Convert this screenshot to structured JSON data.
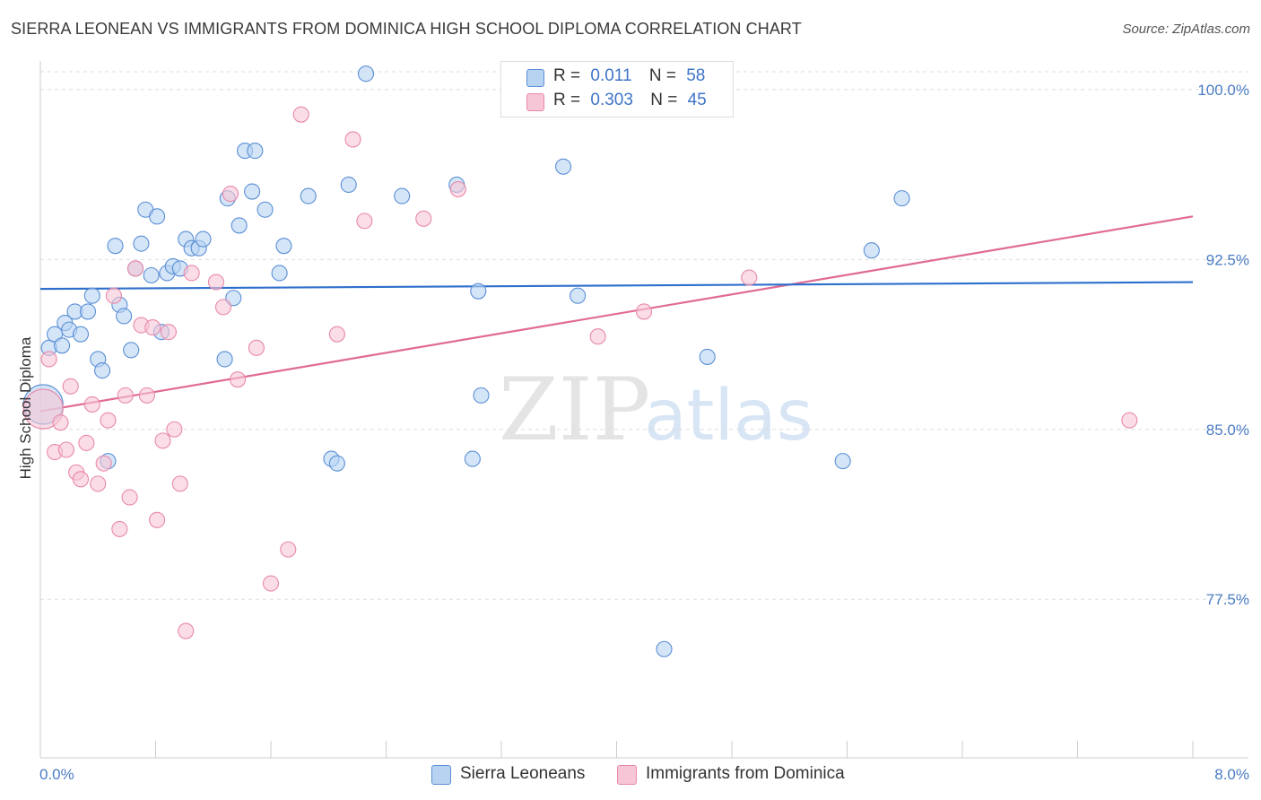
{
  "header": {
    "title": "SIERRA LEONEAN VS IMMIGRANTS FROM DOMINICA HIGH SCHOOL DIPLOMA CORRELATION CHART",
    "source": "Source: ZipAtlas.com"
  },
  "legend": {
    "series1": {
      "r_label": "R =",
      "r_value": "0.011",
      "n_label": "N =",
      "n_value": "58"
    },
    "series2": {
      "r_label": "R =",
      "r_value": "0.303",
      "n_label": "N =",
      "n_value": "45"
    }
  },
  "bottom_legend": {
    "series1": "Sierra Leoneans",
    "series2": "Immigrants from Dominica"
  },
  "colors": {
    "series1_fill": "#b8d3f2",
    "series1_stroke": "#5b8fd6",
    "series1_line": "#2e6fcc",
    "series2_fill": "#f7c6d6",
    "series2_stroke": "#e889aa",
    "series2_line": "#e06a95",
    "tick_text": "#4a7cc4",
    "grid": "#dddddd"
  },
  "chart_data": {
    "type": "scatter",
    "title": "SIERRA LEONEAN VS IMMIGRANTS FROM DOMINICA HIGH SCHOOL DIPLOMA CORRELATION CHART",
    "xlabel": "",
    "ylabel": "High School Diploma",
    "xlim": [
      0,
      8
    ],
    "ylim": [
      70.5,
      101.5
    ],
    "x_tick_labels": [
      "0.0%",
      "8.0%"
    ],
    "y_ticks": [
      77.5,
      85.0,
      92.5,
      100.0
    ],
    "y_tick_labels": [
      "77.5%",
      "85.0%",
      "92.5%",
      "100.0%"
    ],
    "grid": true,
    "watermark": {
      "zip": "ZIP",
      "atlas": "atlas"
    },
    "series": [
      {
        "name": "Sierra Leoneans",
        "trend": {
          "x": [
            0,
            8
          ],
          "y": [
            91.2,
            91.5
          ]
        },
        "points": [
          {
            "x": 0.02,
            "y": 86.1,
            "big": true
          },
          {
            "x": 0.06,
            "y": 88.6
          },
          {
            "x": 0.1,
            "y": 89.2
          },
          {
            "x": 0.15,
            "y": 88.7
          },
          {
            "x": 0.17,
            "y": 89.7
          },
          {
            "x": 0.2,
            "y": 89.4
          },
          {
            "x": 0.24,
            "y": 90.2
          },
          {
            "x": 0.28,
            "y": 89.2
          },
          {
            "x": 0.33,
            "y": 90.2
          },
          {
            "x": 0.36,
            "y": 90.9
          },
          {
            "x": 0.4,
            "y": 88.1
          },
          {
            "x": 0.43,
            "y": 87.6
          },
          {
            "x": 0.47,
            "y": 83.6
          },
          {
            "x": 0.52,
            "y": 93.1
          },
          {
            "x": 0.55,
            "y": 90.5
          },
          {
            "x": 0.58,
            "y": 90.0
          },
          {
            "x": 0.63,
            "y": 88.5
          },
          {
            "x": 0.66,
            "y": 92.1
          },
          {
            "x": 0.7,
            "y": 93.2
          },
          {
            "x": 0.73,
            "y": 94.7
          },
          {
            "x": 0.77,
            "y": 91.8
          },
          {
            "x": 0.81,
            "y": 94.4
          },
          {
            "x": 0.84,
            "y": 89.3
          },
          {
            "x": 0.88,
            "y": 91.9
          },
          {
            "x": 0.92,
            "y": 92.2
          },
          {
            "x": 0.97,
            "y": 92.1
          },
          {
            "x": 1.01,
            "y": 93.4
          },
          {
            "x": 1.05,
            "y": 93.0
          },
          {
            "x": 1.1,
            "y": 93.0
          },
          {
            "x": 1.13,
            "y": 93.4
          },
          {
            "x": 1.28,
            "y": 88.1
          },
          {
            "x": 1.3,
            "y": 95.2
          },
          {
            "x": 1.34,
            "y": 90.8
          },
          {
            "x": 1.38,
            "y": 94.0
          },
          {
            "x": 1.42,
            "y": 97.3
          },
          {
            "x": 1.47,
            "y": 95.5
          },
          {
            "x": 1.49,
            "y": 97.3
          },
          {
            "x": 1.56,
            "y": 94.7
          },
          {
            "x": 1.66,
            "y": 91.9
          },
          {
            "x": 1.69,
            "y": 93.1
          },
          {
            "x": 1.86,
            "y": 95.3
          },
          {
            "x": 2.02,
            "y": 83.7
          },
          {
            "x": 2.06,
            "y": 83.5
          },
          {
            "x": 2.14,
            "y": 95.8
          },
          {
            "x": 2.26,
            "y": 100.7
          },
          {
            "x": 2.51,
            "y": 95.3
          },
          {
            "x": 2.89,
            "y": 95.8
          },
          {
            "x": 3.0,
            "y": 83.7
          },
          {
            "x": 3.04,
            "y": 91.1
          },
          {
            "x": 3.06,
            "y": 86.5
          },
          {
            "x": 3.63,
            "y": 96.6
          },
          {
            "x": 3.73,
            "y": 90.9
          },
          {
            "x": 4.31,
            "y": 100.7
          },
          {
            "x": 4.33,
            "y": 75.3
          },
          {
            "x": 4.63,
            "y": 88.2
          },
          {
            "x": 5.57,
            "y": 83.6
          },
          {
            "x": 5.77,
            "y": 92.9
          },
          {
            "x": 5.98,
            "y": 95.2
          }
        ]
      },
      {
        "name": "Immigrants from Dominica",
        "trend": {
          "x": [
            0,
            8
          ],
          "y": [
            85.8,
            94.4
          ]
        },
        "points": [
          {
            "x": 0.02,
            "y": 85.9,
            "big": true
          },
          {
            "x": 0.06,
            "y": 88.1
          },
          {
            "x": 0.1,
            "y": 84.0
          },
          {
            "x": 0.14,
            "y": 85.3
          },
          {
            "x": 0.18,
            "y": 84.1
          },
          {
            "x": 0.21,
            "y": 86.9
          },
          {
            "x": 0.25,
            "y": 83.1
          },
          {
            "x": 0.28,
            "y": 82.8
          },
          {
            "x": 0.32,
            "y": 84.4
          },
          {
            "x": 0.36,
            "y": 86.1
          },
          {
            "x": 0.4,
            "y": 82.6
          },
          {
            "x": 0.44,
            "y": 83.5
          },
          {
            "x": 0.47,
            "y": 85.4
          },
          {
            "x": 0.51,
            "y": 90.9
          },
          {
            "x": 0.55,
            "y": 80.6
          },
          {
            "x": 0.59,
            "y": 86.5
          },
          {
            "x": 0.62,
            "y": 82.0
          },
          {
            "x": 0.66,
            "y": 92.1
          },
          {
            "x": 0.7,
            "y": 89.6
          },
          {
            "x": 0.74,
            "y": 86.5
          },
          {
            "x": 0.78,
            "y": 89.5
          },
          {
            "x": 0.81,
            "y": 81.0
          },
          {
            "x": 0.85,
            "y": 84.5
          },
          {
            "x": 0.89,
            "y": 89.3
          },
          {
            "x": 0.93,
            "y": 85.0
          },
          {
            "x": 0.97,
            "y": 82.6
          },
          {
            "x": 1.01,
            "y": 76.1
          },
          {
            "x": 1.05,
            "y": 91.9
          },
          {
            "x": 1.22,
            "y": 91.5
          },
          {
            "x": 1.27,
            "y": 90.4
          },
          {
            "x": 1.32,
            "y": 95.4
          },
          {
            "x": 1.37,
            "y": 87.2
          },
          {
            "x": 1.5,
            "y": 88.6
          },
          {
            "x": 1.6,
            "y": 78.2
          },
          {
            "x": 1.72,
            "y": 79.7
          },
          {
            "x": 1.81,
            "y": 98.9
          },
          {
            "x": 2.06,
            "y": 89.2
          },
          {
            "x": 2.17,
            "y": 97.8
          },
          {
            "x": 2.25,
            "y": 94.2
          },
          {
            "x": 2.66,
            "y": 94.3
          },
          {
            "x": 2.9,
            "y": 95.6
          },
          {
            "x": 3.87,
            "y": 89.1
          },
          {
            "x": 4.19,
            "y": 90.2
          },
          {
            "x": 4.92,
            "y": 91.7
          },
          {
            "x": 7.56,
            "y": 85.4
          }
        ]
      }
    ]
  }
}
